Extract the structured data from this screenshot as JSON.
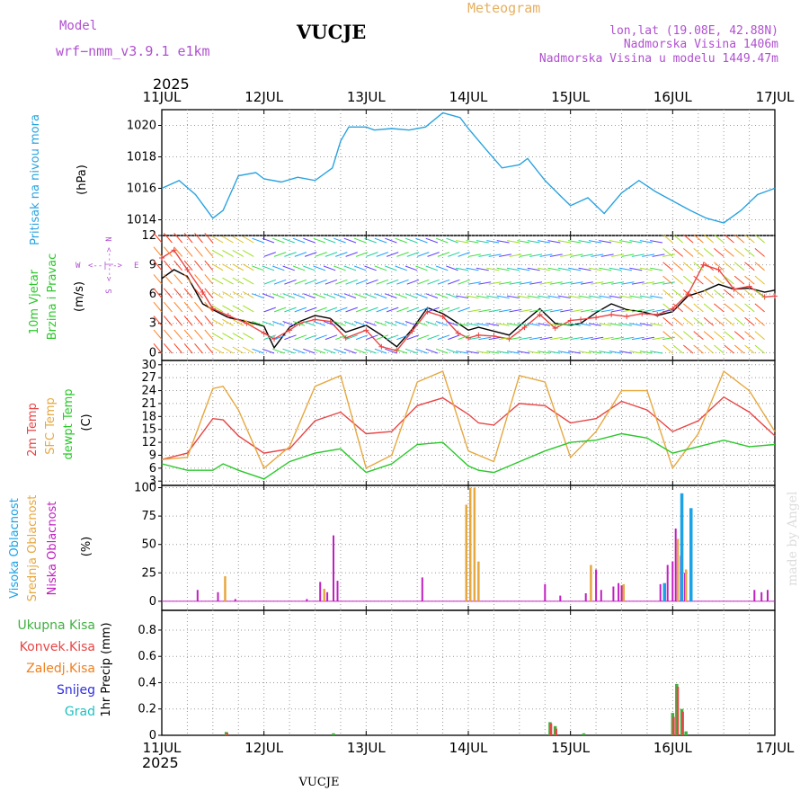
{
  "header": {
    "model_label": "Model",
    "model_name": "wrf−nmm_v3.9.1  e1km",
    "station": "VUCJE",
    "product": "Meteogram",
    "coords": "lon,lat (19.08E, 42.88N)",
    "elevation": "Nadmorska Visina 1406m",
    "model_elevation": "Nadmorska Visina u modelu 1449.47m",
    "footer_station": "VUCJE",
    "watermark": "made by Angel"
  },
  "colors": {
    "pressure": "#29a3e0",
    "temp2m": "#e84545",
    "sfc": "#e6a840",
    "dewpt": "#2ac82a",
    "wind_label": "#2ac82a",
    "wind_line": "#000000",
    "gust": "#e84545",
    "cloud_high": "#1aa3e6",
    "cloud_mid": "#e6a840",
    "cloud_low": "#c020c0",
    "precip_total": "#40b040",
    "precip_conv": "#e84545",
    "precip_frozen": "#f08020",
    "precip_snow": "#3030e0",
    "precip_hail": "#20c0c0",
    "header_purple": "#b050d0",
    "header_orange": "#e6b060"
  },
  "time_axis": {
    "year": "2025",
    "labels": [
      "11JUL",
      "12JUL",
      "13JUL",
      "14JUL",
      "15JUL",
      "16JUL",
      "17JUL"
    ],
    "range_days": [
      0,
      6
    ]
  },
  "compass": {
    "w": "W",
    "e": "E",
    "n": "N",
    "s": "S",
    "arrows_h": "<--|-->",
    "arrows_v": "<--|-->"
  },
  "chart_data": [
    {
      "type": "line",
      "id": "pressure",
      "ylabel_main": "Pritisak na nivou mora",
      "ylabel_unit": "(hPa)",
      "ylim": [
        1013,
        1021
      ],
      "yticks": [
        1014,
        1016,
        1018,
        1020
      ],
      "grid": true,
      "x": [
        0,
        0.17,
        0.33,
        0.5,
        0.6,
        0.75,
        0.92,
        1.0,
        1.17,
        1.33,
        1.5,
        1.67,
        1.75,
        1.83,
        2.0,
        2.08,
        2.25,
        2.42,
        2.58,
        2.75,
        2.92,
        3.0,
        3.17,
        3.33,
        3.5,
        3.58,
        3.75,
        3.92,
        4.0,
        4.17,
        4.33,
        4.5,
        4.67,
        4.83,
        5.0,
        5.17,
        5.33,
        5.5,
        5.67,
        5.83,
        6.0
      ],
      "series": [
        {
          "values": [
            1016.0,
            1016.5,
            1015.6,
            1014.1,
            1014.6,
            1016.8,
            1017.0,
            1016.6,
            1016.4,
            1016.7,
            1016.5,
            1017.3,
            1019.0,
            1019.9,
            1019.9,
            1019.7,
            1019.8,
            1019.7,
            1019.9,
            1020.8,
            1020.5,
            1019.8,
            1018.5,
            1017.3,
            1017.5,
            1017.9,
            1016.5,
            1015.4,
            1014.9,
            1015.4,
            1014.4,
            1015.7,
            1016.5,
            1015.8,
            1015.2,
            1014.6,
            1014.1,
            1013.8,
            1014.6,
            1015.6,
            1016.0
          ]
        }
      ]
    },
    {
      "type": "line",
      "id": "wind",
      "ylabel_a": "10m Vjetar",
      "ylabel_b": "Brzina i Pravac",
      "ylabel_unit": "(m/s)",
      "ylim": [
        -0.8,
        12
      ],
      "yticks": [
        0,
        3,
        6,
        9,
        12
      ],
      "grid": true,
      "x": [
        0,
        0.12,
        0.25,
        0.4,
        0.5,
        0.65,
        0.83,
        1.0,
        1.1,
        1.25,
        1.35,
        1.5,
        1.65,
        1.8,
        2.0,
        2.15,
        2.3,
        2.45,
        2.6,
        2.75,
        2.9,
        3.0,
        3.1,
        3.25,
        3.4,
        3.55,
        3.7,
        3.85,
        4.0,
        4.1,
        4.25,
        4.4,
        4.55,
        4.7,
        4.85,
        5.0,
        5.15,
        5.3,
        5.45,
        5.6,
        5.75,
        5.9,
        6.0
      ],
      "series": [
        {
          "values": [
            7.6,
            8.5,
            7.8,
            5.0,
            4.4,
            3.6,
            3.2,
            2.7,
            0.5,
            2.6,
            3.2,
            3.8,
            3.5,
            2.1,
            2.8,
            1.8,
            0.6,
            2.4,
            4.6,
            4.0,
            3.0,
            2.3,
            2.6,
            2.2,
            1.8,
            3.2,
            4.5,
            3.0,
            2.8,
            3.0,
            4.1,
            5.0,
            4.4,
            4.2,
            3.8,
            4.2,
            5.8,
            6.3,
            7.0,
            6.5,
            6.6,
            6.2,
            6.4
          ]
        },
        {
          "values": [
            9.7,
            10.5,
            8.5,
            6.2,
            4.5,
            3.8,
            3.0,
            2.0,
            1.4,
            2.3,
            3.0,
            3.4,
            3.2,
            1.5,
            2.3,
            0.6,
            0.2,
            2.2,
            4.2,
            3.7,
            2.0,
            1.5,
            1.8,
            1.7,
            1.4,
            2.6,
            3.9,
            2.5,
            3.3,
            3.4,
            3.6,
            3.9,
            3.7,
            4.0,
            3.9,
            4.5,
            6.0,
            9.0,
            8.5,
            6.5,
            6.8,
            5.7,
            5.8
          ]
        }
      ]
    },
    {
      "type": "line",
      "id": "temperature",
      "ylabel_a": "2m Temp",
      "ylabel_b": "SFC Temp",
      "ylabel_c": "dewpt Temp",
      "ylabel_unit": "(C)",
      "ylim": [
        2,
        31
      ],
      "yticks": [
        3,
        6,
        9,
        12,
        15,
        18,
        21,
        24,
        27,
        30
      ],
      "grid": true,
      "x": [
        0,
        0.25,
        0.5,
        0.6,
        0.75,
        1.0,
        1.25,
        1.5,
        1.75,
        2.0,
        2.25,
        2.5,
        2.75,
        3.0,
        3.1,
        3.25,
        3.5,
        3.75,
        4.0,
        4.25,
        4.5,
        4.75,
        5.0,
        5.25,
        5.5,
        5.75,
        6.0
      ],
      "series": [
        {
          "values": [
            8,
            9.5,
            17.5,
            17.2,
            13.5,
            9.5,
            10.5,
            17.0,
            19.0,
            14.0,
            14.5,
            20.5,
            22.3,
            18.5,
            16.5,
            16.0,
            21.0,
            20.5,
            16.5,
            17.5,
            21.5,
            19.5,
            14.5,
            17.0,
            22.5,
            19.0,
            13.5
          ]
        },
        {
          "values": [
            8,
            8.5,
            24.5,
            25.0,
            19.5,
            6.0,
            11.0,
            25.0,
            27.5,
            6.0,
            9.0,
            26.0,
            28.5,
            10.0,
            9.0,
            7.5,
            27.5,
            26.0,
            8.5,
            14.5,
            24.0,
            24.0,
            6.0,
            14.0,
            28.5,
            24.0,
            14.5
          ]
        },
        {
          "values": [
            7,
            5.5,
            5.5,
            7.0,
            5.5,
            3.5,
            7.5,
            9.5,
            10.5,
            5.0,
            7.0,
            11.5,
            12.0,
            6.5,
            5.5,
            5.0,
            7.5,
            10.0,
            12.0,
            12.5,
            14.0,
            13.0,
            9.5,
            11.0,
            12.5,
            11.0,
            11.5
          ]
        }
      ]
    },
    {
      "type": "bar",
      "id": "cloud",
      "ylabel_a": "Visoka Oblacnost",
      "ylabel_b": "Srednja Oblacnost",
      "ylabel_c": "Niska Oblacnost",
      "ylabel_unit": "(%)",
      "ylim": [
        -8,
        102
      ],
      "yticks": [
        0,
        25,
        50,
        75,
        100
      ],
      "grid": true,
      "series": [
        {
          "name": "low",
          "points": [
            [
              0.35,
              10
            ],
            [
              0.55,
              8
            ],
            [
              0.62,
              6
            ],
            [
              0.72,
              2
            ],
            [
              1.42,
              2
            ],
            [
              1.55,
              17
            ],
            [
              1.62,
              8
            ],
            [
              1.68,
              58
            ],
            [
              1.72,
              18
            ],
            [
              2.55,
              21
            ],
            [
              3.75,
              15
            ],
            [
              3.9,
              5
            ],
            [
              4.15,
              7
            ],
            [
              4.2,
              31
            ],
            [
              4.25,
              28
            ],
            [
              4.3,
              10
            ],
            [
              4.42,
              13
            ],
            [
              4.47,
              16
            ],
            [
              4.5,
              14
            ],
            [
              4.88,
              15
            ],
            [
              4.95,
              32
            ],
            [
              5.0,
              35
            ],
            [
              5.03,
              64
            ],
            [
              5.08,
              40
            ],
            [
              5.12,
              25
            ],
            [
              5.18,
              10
            ],
            [
              5.8,
              10
            ],
            [
              5.87,
              8
            ],
            [
              5.93,
              10
            ]
          ]
        },
        {
          "name": "mid",
          "points": [
            [
              0.62,
              22
            ],
            [
              1.59,
              11
            ],
            [
              2.98,
              85
            ],
            [
              3.02,
              100
            ],
            [
              3.06,
              100
            ],
            [
              3.1,
              35
            ],
            [
              4.2,
              32
            ],
            [
              4.52,
              15
            ],
            [
              5.05,
              55
            ],
            [
              5.13,
              28
            ]
          ]
        },
        {
          "name": "high",
          "points": [
            [
              4.92,
              16
            ],
            [
              5.09,
              95
            ],
            [
              5.18,
              82
            ]
          ]
        }
      ]
    },
    {
      "type": "bar",
      "id": "precip",
      "labels": [
        "Ukupna Kisa",
        "Konvek.Kisa",
        "Zaledj.Kisa",
        "Snijeg",
        "Grad"
      ],
      "ylabel_unit": "1hr Precip (mm)",
      "ylim": [
        0,
        0.95
      ],
      "yticks": [
        0,
        0.2,
        0.4,
        0.6,
        0.8
      ],
      "yticklabels": [
        "0",
        "0.2",
        "0.4",
        "0.6",
        "0.8"
      ],
      "grid": true,
      "series": [
        {
          "name": "total",
          "points": [
            [
              0.63,
              0.025
            ],
            [
              1.68,
              0.015
            ],
            [
              3.8,
              0.1
            ],
            [
              3.85,
              0.07
            ],
            [
              4.13,
              0.015
            ],
            [
              5.0,
              0.17
            ],
            [
              5.04,
              0.39
            ],
            [
              5.09,
              0.2
            ],
            [
              5.13,
              0.03
            ]
          ]
        },
        {
          "name": "conv",
          "points": [
            [
              0.64,
              0.02
            ],
            [
              3.81,
              0.09
            ],
            [
              3.86,
              0.05
            ],
            [
              5.01,
              0.14
            ],
            [
              5.05,
              0.37
            ],
            [
              5.1,
              0.18
            ]
          ]
        }
      ]
    }
  ]
}
